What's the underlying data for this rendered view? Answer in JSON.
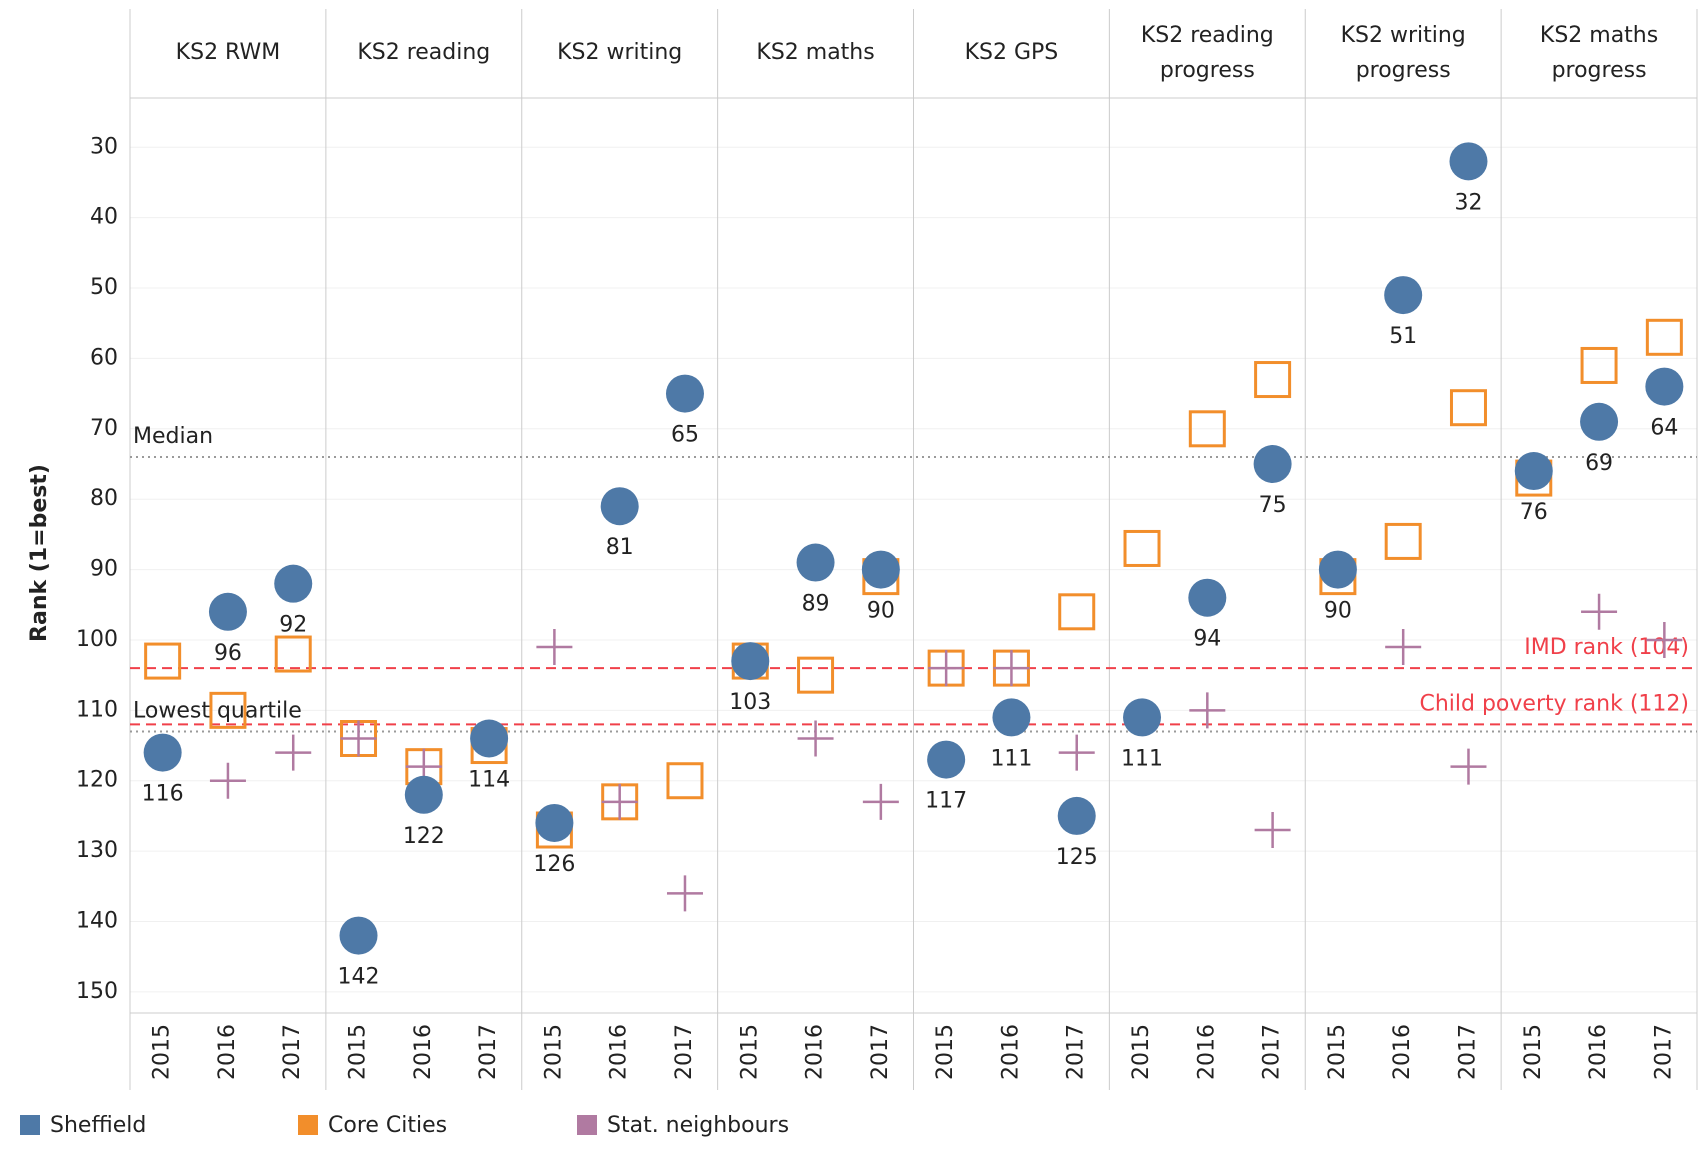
{
  "chart_data": {
    "type": "faceted-dot",
    "y_label": "Rank (1=best)",
    "ylim": [
      23,
      153
    ],
    "yticks": [
      30,
      40,
      50,
      60,
      70,
      80,
      90,
      100,
      110,
      120,
      130,
      140,
      150
    ],
    "y_reversed": true,
    "grid": true,
    "categories": [
      "2015",
      "2016",
      "2017"
    ],
    "panels": [
      "KS2 RWM",
      "KS2 reading",
      "KS2 writing",
      "KS2 maths",
      "KS2 GPS",
      "KS2 reading progress",
      "KS2 writing progress",
      "KS2 maths progress"
    ],
    "series": [
      {
        "name": "Sheffield",
        "color": "#4e79a7",
        "marker": "circle",
        "show_labels": true,
        "values": [
          [
            116,
            96,
            92
          ],
          [
            142,
            122,
            114
          ],
          [
            126,
            81,
            65
          ],
          [
            103,
            89,
            90
          ],
          [
            117,
            111,
            125
          ],
          [
            111,
            94,
            75
          ],
          [
            90,
            51,
            32
          ],
          [
            76,
            69,
            64
          ]
        ]
      },
      {
        "name": "Core Cities",
        "color": "#f28e2b",
        "marker": "square",
        "show_labels": false,
        "values": [
          [
            103,
            110,
            102
          ],
          [
            114,
            118,
            115
          ],
          [
            127,
            123,
            120
          ],
          [
            103,
            105,
            91
          ],
          [
            104,
            104,
            96
          ],
          [
            87,
            70,
            63
          ],
          [
            91,
            86,
            67
          ],
          [
            77,
            61,
            57
          ]
        ]
      },
      {
        "name": "Stat. neighbours",
        "color": "#b07aa1",
        "marker": "plus",
        "show_labels": false,
        "values": [
          [
            null,
            120,
            116
          ],
          [
            114,
            118,
            null
          ],
          [
            101,
            123,
            136
          ],
          [
            null,
            114,
            123
          ],
          [
            104,
            104,
            116
          ],
          [
            null,
            110,
            127
          ],
          [
            null,
            101,
            118
          ],
          [
            null,
            96,
            100
          ]
        ]
      }
    ],
    "reference_lines": [
      {
        "label": "Median",
        "value": 74,
        "style": "dotted",
        "color": "#9a9a9a"
      },
      {
        "label": "Lowest quartile",
        "value": 113,
        "style": "dotted",
        "color": "#9a9a9a"
      },
      {
        "label": "IMD rank (104)",
        "value": 104,
        "style": "dashed",
        "color": "#f0404a"
      },
      {
        "label": "Child poverty rank (112)",
        "value": 112,
        "style": "dashed",
        "color": "#f0404a"
      }
    ]
  }
}
